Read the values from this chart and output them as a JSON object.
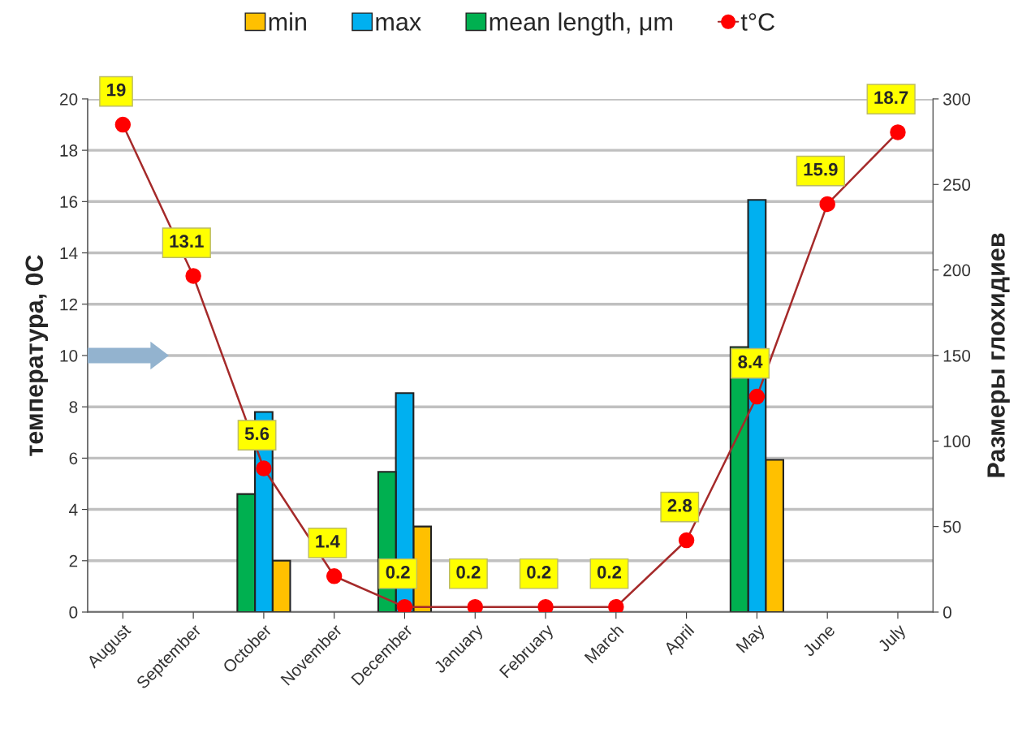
{
  "chart_data": {
    "type": "bar",
    "categories": [
      "August",
      "September",
      "October",
      "November",
      "December",
      "January",
      "February",
      "March",
      "April",
      "May",
      "June",
      "July"
    ],
    "ylabel": "температура, 0С",
    "y2label": "Размеры глохидиев",
    "ylim": [
      0,
      20
    ],
    "yticks": [
      0,
      2,
      4,
      6,
      8,
      10,
      12,
      14,
      16,
      18,
      20
    ],
    "y2lim": [
      0,
      300
    ],
    "y2ticks": [
      0,
      50,
      100,
      150,
      200,
      250,
      300
    ],
    "grid": "y",
    "legend": "top",
    "series": [
      {
        "name": "min",
        "axis": "y2",
        "color": "#ffc000",
        "values": [
          null,
          null,
          30,
          null,
          50,
          null,
          null,
          null,
          null,
          89,
          null,
          null
        ]
      },
      {
        "name": "max",
        "axis": "y2",
        "color": "#00b0f0",
        "values": [
          null,
          null,
          117,
          null,
          128,
          null,
          null,
          null,
          null,
          241,
          null,
          null
        ]
      },
      {
        "name": "mean length, μm",
        "axis": "y2",
        "color": "#00b050",
        "values": [
          null,
          null,
          69,
          null,
          82,
          null,
          null,
          null,
          null,
          155,
          null,
          null
        ]
      },
      {
        "name": "t°C",
        "type": "line",
        "color": "#ff0000",
        "marker": "circle",
        "data_labels": true,
        "values": [
          19,
          13.1,
          5.6,
          1.4,
          0.2,
          0.2,
          0.2,
          0.2,
          2.8,
          8.4,
          15.9,
          18.7
        ]
      }
    ]
  }
}
